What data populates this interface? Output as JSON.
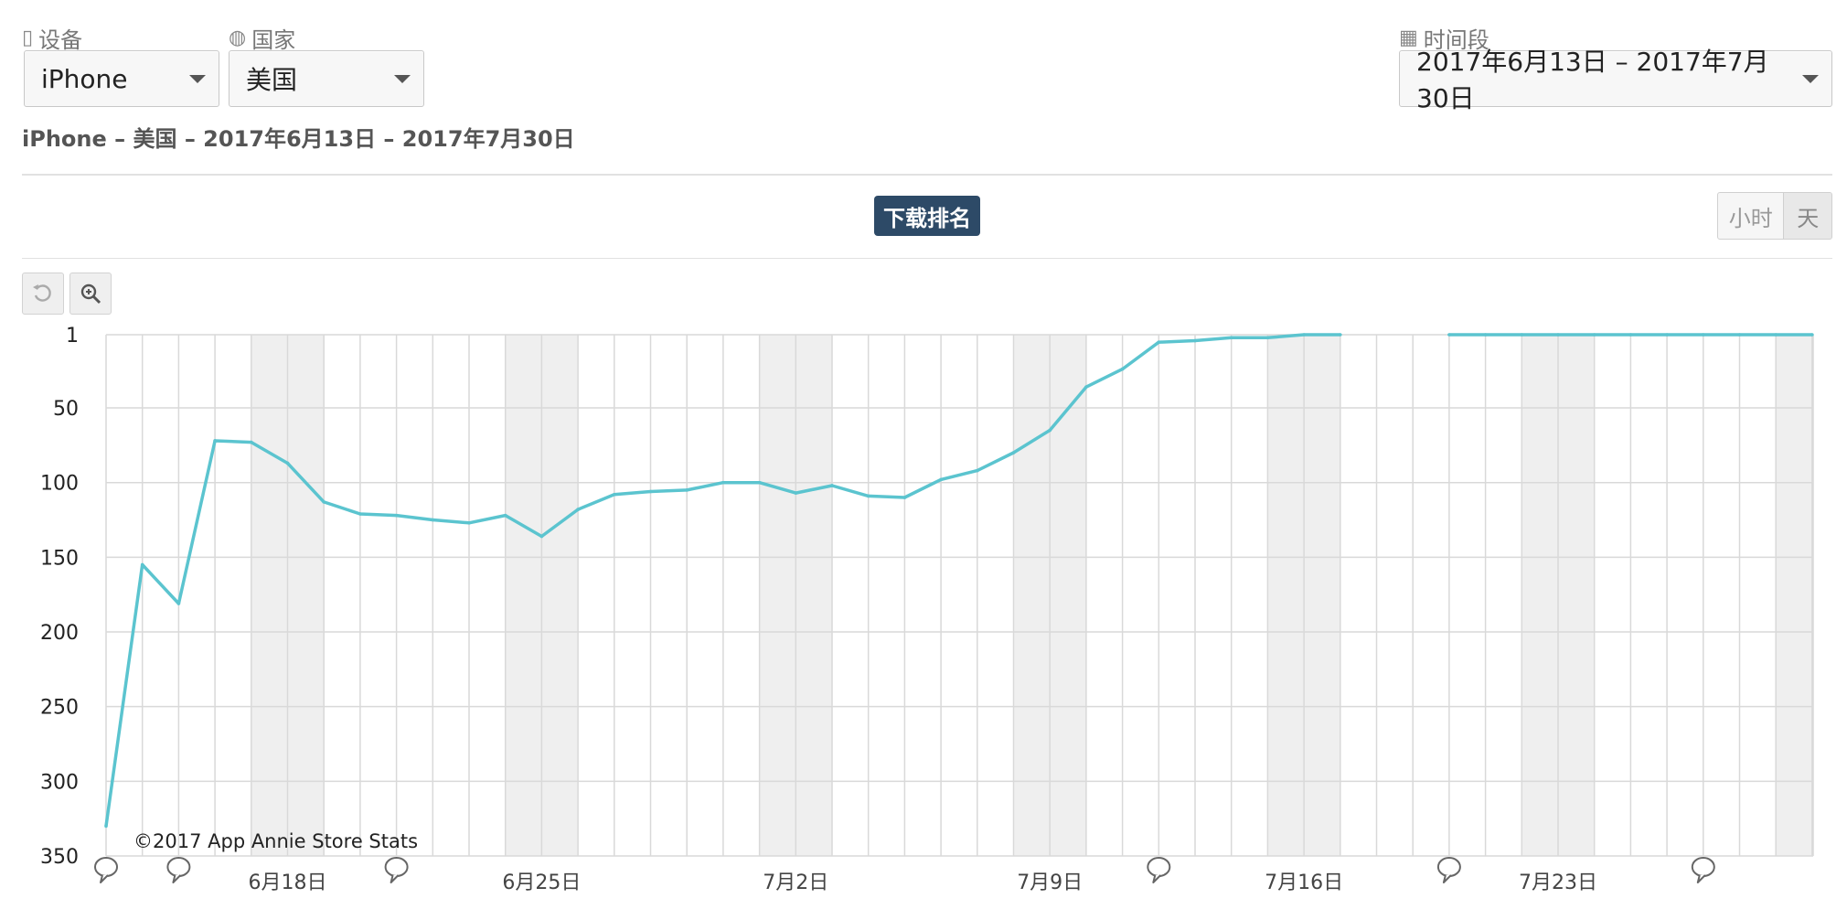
{
  "filters": {
    "device": {
      "label": "设备",
      "icon": "phone-icon",
      "value": "iPhone"
    },
    "country": {
      "label": "国家",
      "icon": "globe-icon",
      "value": "美国"
    },
    "period": {
      "label": "时间段",
      "icon": "calendar-icon",
      "value": "2017年6月13日 – 2017年7月30日"
    }
  },
  "subtitle": "iPhone – 美国 – 2017年6月13日 – 2017年7月30日",
  "metric_badge": "下载排名",
  "granularity": {
    "hour": "小时",
    "day": "天",
    "selected": "天"
  },
  "toolbar": {
    "reset_icon": "reset-zoom-icon",
    "zoom_icon": "zoom-in-icon"
  },
  "colors": {
    "line": "#5bc4cf",
    "weekend": "#efefef",
    "grid": "#d9d9d9",
    "badge": "#2d4a67"
  },
  "chart_data": {
    "type": "line",
    "x_start": "2017-06-13",
    "x_end": "2017-07-30",
    "y_reversed": true,
    "ylim": [
      1,
      350
    ],
    "yticks": [
      1,
      50,
      100,
      150,
      200,
      250,
      300,
      350
    ],
    "xtick_labels": [
      "6月18日",
      "6月25日",
      "7月2日",
      "7月9日",
      "7月16日",
      "7月23日"
    ],
    "grid": true,
    "weekend_shading": true,
    "series": [
      {
        "values": [
          330,
          155,
          181,
          72,
          73,
          87,
          113,
          121,
          122,
          125,
          127,
          122,
          136,
          118,
          108,
          106,
          105,
          100,
          100,
          107,
          102,
          109,
          110,
          98,
          92,
          80,
          65,
          36,
          24,
          6,
          5,
          3,
          3,
          1,
          1,
          null,
          null,
          1,
          1,
          1,
          1,
          1,
          1,
          1,
          1,
          1,
          1,
          1
        ]
      }
    ],
    "annotations": [
      {
        "date": "2017-06-13",
        "icon": "speech-bubble-icon"
      },
      {
        "date": "2017-06-15",
        "icon": "speech-bubble-icon"
      },
      {
        "date": "2017-06-21",
        "icon": "speech-bubble-icon"
      },
      {
        "date": "2017-07-12",
        "icon": "speech-bubble-icon"
      },
      {
        "date": "2017-07-20",
        "icon": "speech-bubble-icon"
      },
      {
        "date": "2017-07-27",
        "icon": "speech-bubble-icon"
      }
    ],
    "credit": "©2017 App Annie Store Stats"
  }
}
